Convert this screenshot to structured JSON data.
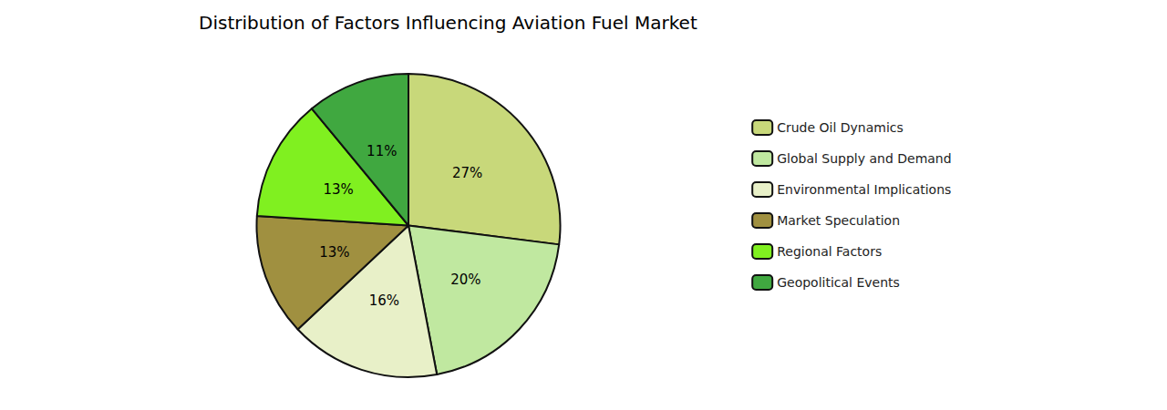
{
  "chart_data": {
    "type": "pie",
    "title": "Distribution of Factors Influencing Aviation Fuel Market",
    "categories": [
      "Crude Oil Dynamics",
      "Global Supply and Demand",
      "Environmental Implications",
      "Market Speculation",
      "Regional Factors",
      "Geopolitical Events"
    ],
    "values": [
      27,
      20,
      16,
      13,
      13,
      11
    ],
    "value_labels": [
      "27%",
      "20%",
      "16%",
      "13%",
      "13%",
      "11%"
    ],
    "colors": [
      "#c8d87a",
      "#c0e8a0",
      "#e8f0c8",
      "#a09040",
      "#80f020",
      "#40a840"
    ],
    "legend": "right",
    "data_labels": true
  }
}
